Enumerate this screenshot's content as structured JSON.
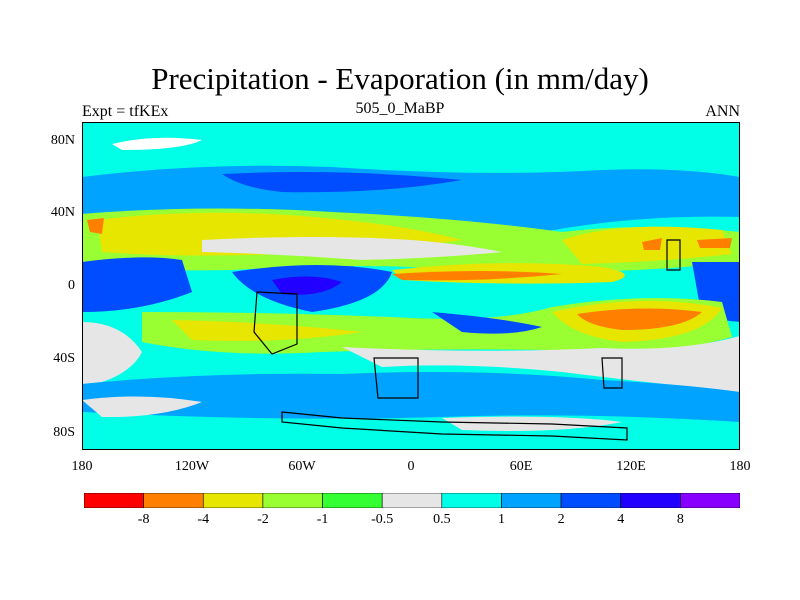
{
  "title": "Precipitation - Evaporation (in mm/day)",
  "subtitle": "505_0_MaBP",
  "left_label": "Expt = tfKEx",
  "right_label": "ANN",
  "y_ticks": [
    "80N",
    "40N",
    "0",
    "40S",
    "80S"
  ],
  "x_ticks": [
    "180",
    "120W",
    "60W",
    "0",
    "60E",
    "120E",
    "180"
  ],
  "colorbar": {
    "colors": [
      "#ff0000",
      "#ff8000",
      "#e6e600",
      "#99ff33",
      "#33ff33",
      "#e6e6e6",
      "#00ffe6",
      "#00a3ff",
      "#004dff",
      "#2200ff",
      "#8800ff"
    ],
    "labels": [
      "-8",
      "-4",
      "-2",
      "-1",
      "-0.5",
      "0.5",
      "1",
      "2",
      "4",
      "8"
    ]
  },
  "map_colors": {
    "wet_light": "#00ffe6",
    "wet_mid": "#00a3ff",
    "wet_strong": "#004dff",
    "wet_max": "#2200ff",
    "neutral": "#e6e6e6",
    "dry_1": "#33ff33",
    "dry_2": "#99ff33",
    "dry_3": "#e6e600",
    "dry_4": "#ff8000"
  }
}
